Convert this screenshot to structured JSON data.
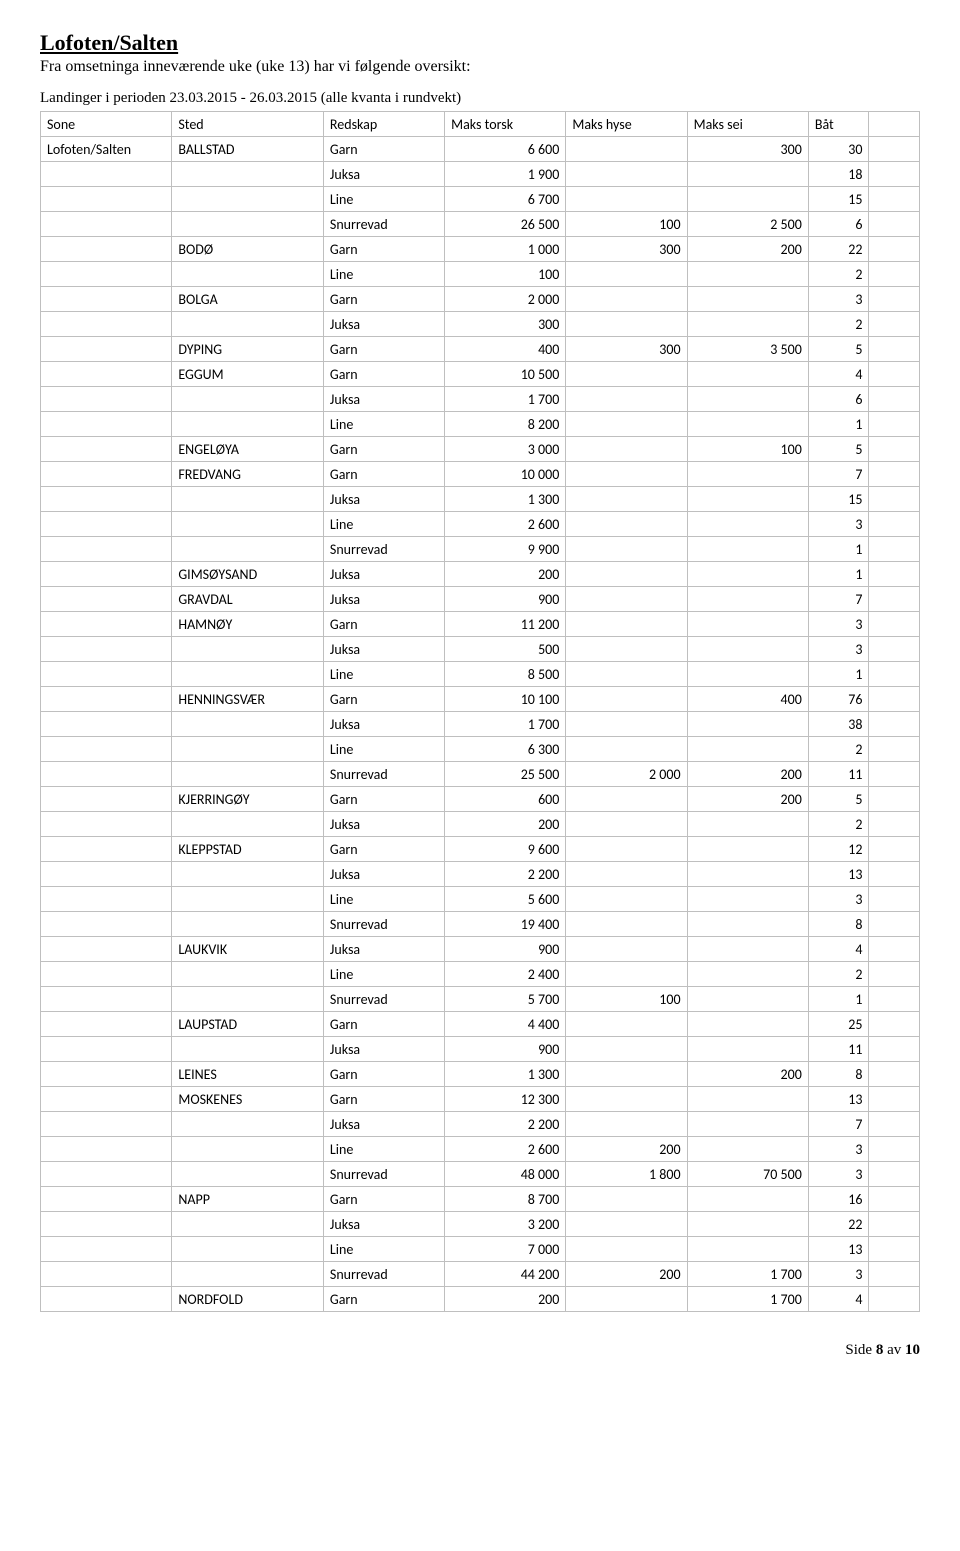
{
  "heading": "Lofoten/Salten",
  "subheading": "Fra omsetninga inneværende uke (uke 13) har vi følgende oversikt:",
  "period_line": "Landinger i perioden 23.03.2015 - 26.03.2015 (alle kvanta i rundvekt)",
  "columns": [
    "Sone",
    "Sted",
    "Redskap",
    "Maks torsk",
    "Maks hyse",
    "Maks sei",
    "Båt"
  ],
  "rows": [
    {
      "sone": "Lofoten/Salten",
      "sted": "BALLSTAD",
      "redskap": "Garn",
      "torsk": "6 600",
      "hyse": "",
      "sei": "300",
      "bat": "30"
    },
    {
      "sone": "",
      "sted": "",
      "redskap": "Juksa",
      "torsk": "1 900",
      "hyse": "",
      "sei": "",
      "bat": "18"
    },
    {
      "sone": "",
      "sted": "",
      "redskap": "Line",
      "torsk": "6 700",
      "hyse": "",
      "sei": "",
      "bat": "15"
    },
    {
      "sone": "",
      "sted": "",
      "redskap": "Snurrevad",
      "torsk": "26 500",
      "hyse": "100",
      "sei": "2 500",
      "bat": "6"
    },
    {
      "sone": "",
      "sted": "BODØ",
      "redskap": "Garn",
      "torsk": "1 000",
      "hyse": "300",
      "sei": "200",
      "bat": "22"
    },
    {
      "sone": "",
      "sted": "",
      "redskap": "Line",
      "torsk": "100",
      "hyse": "",
      "sei": "",
      "bat": "2"
    },
    {
      "sone": "",
      "sted": "BOLGA",
      "redskap": "Garn",
      "torsk": "2 000",
      "hyse": "",
      "sei": "",
      "bat": "3"
    },
    {
      "sone": "",
      "sted": "",
      "redskap": "Juksa",
      "torsk": "300",
      "hyse": "",
      "sei": "",
      "bat": "2"
    },
    {
      "sone": "",
      "sted": "DYPING",
      "redskap": "Garn",
      "torsk": "400",
      "hyse": "300",
      "sei": "3 500",
      "bat": "5"
    },
    {
      "sone": "",
      "sted": "EGGUM",
      "redskap": "Garn",
      "torsk": "10 500",
      "hyse": "",
      "sei": "",
      "bat": "4"
    },
    {
      "sone": "",
      "sted": "",
      "redskap": "Juksa",
      "torsk": "1 700",
      "hyse": "",
      "sei": "",
      "bat": "6"
    },
    {
      "sone": "",
      "sted": "",
      "redskap": "Line",
      "torsk": "8 200",
      "hyse": "",
      "sei": "",
      "bat": "1"
    },
    {
      "sone": "",
      "sted": "ENGELØYA",
      "redskap": "Garn",
      "torsk": "3 000",
      "hyse": "",
      "sei": "100",
      "bat": "5"
    },
    {
      "sone": "",
      "sted": "FREDVANG",
      "redskap": "Garn",
      "torsk": "10 000",
      "hyse": "",
      "sei": "",
      "bat": "7"
    },
    {
      "sone": "",
      "sted": "",
      "redskap": "Juksa",
      "torsk": "1 300",
      "hyse": "",
      "sei": "",
      "bat": "15"
    },
    {
      "sone": "",
      "sted": "",
      "redskap": "Line",
      "torsk": "2 600",
      "hyse": "",
      "sei": "",
      "bat": "3"
    },
    {
      "sone": "",
      "sted": "",
      "redskap": "Snurrevad",
      "torsk": "9 900",
      "hyse": "",
      "sei": "",
      "bat": "1"
    },
    {
      "sone": "",
      "sted": "GIMSØYSAND",
      "redskap": "Juksa",
      "torsk": "200",
      "hyse": "",
      "sei": "",
      "bat": "1"
    },
    {
      "sone": "",
      "sted": "GRAVDAL",
      "redskap": "Juksa",
      "torsk": "900",
      "hyse": "",
      "sei": "",
      "bat": "7"
    },
    {
      "sone": "",
      "sted": "HAMNØY",
      "redskap": "Garn",
      "torsk": "11 200",
      "hyse": "",
      "sei": "",
      "bat": "3"
    },
    {
      "sone": "",
      "sted": "",
      "redskap": "Juksa",
      "torsk": "500",
      "hyse": "",
      "sei": "",
      "bat": "3"
    },
    {
      "sone": "",
      "sted": "",
      "redskap": "Line",
      "torsk": "8 500",
      "hyse": "",
      "sei": "",
      "bat": "1"
    },
    {
      "sone": "",
      "sted": "HENNINGSVÆR",
      "redskap": "Garn",
      "torsk": "10 100",
      "hyse": "",
      "sei": "400",
      "bat": "76"
    },
    {
      "sone": "",
      "sted": "",
      "redskap": "Juksa",
      "torsk": "1 700",
      "hyse": "",
      "sei": "",
      "bat": "38"
    },
    {
      "sone": "",
      "sted": "",
      "redskap": "Line",
      "torsk": "6 300",
      "hyse": "",
      "sei": "",
      "bat": "2"
    },
    {
      "sone": "",
      "sted": "",
      "redskap": "Snurrevad",
      "torsk": "25 500",
      "hyse": "2 000",
      "sei": "200",
      "bat": "11"
    },
    {
      "sone": "",
      "sted": "KJERRINGØY",
      "redskap": "Garn",
      "torsk": "600",
      "hyse": "",
      "sei": "200",
      "bat": "5"
    },
    {
      "sone": "",
      "sted": "",
      "redskap": "Juksa",
      "torsk": "200",
      "hyse": "",
      "sei": "",
      "bat": "2"
    },
    {
      "sone": "",
      "sted": "KLEPPSTAD",
      "redskap": "Garn",
      "torsk": "9 600",
      "hyse": "",
      "sei": "",
      "bat": "12"
    },
    {
      "sone": "",
      "sted": "",
      "redskap": "Juksa",
      "torsk": "2 200",
      "hyse": "",
      "sei": "",
      "bat": "13"
    },
    {
      "sone": "",
      "sted": "",
      "redskap": "Line",
      "torsk": "5 600",
      "hyse": "",
      "sei": "",
      "bat": "3"
    },
    {
      "sone": "",
      "sted": "",
      "redskap": "Snurrevad",
      "torsk": "19 400",
      "hyse": "",
      "sei": "",
      "bat": "8"
    },
    {
      "sone": "",
      "sted": "LAUKVIK",
      "redskap": "Juksa",
      "torsk": "900",
      "hyse": "",
      "sei": "",
      "bat": "4"
    },
    {
      "sone": "",
      "sted": "",
      "redskap": "Line",
      "torsk": "2 400",
      "hyse": "",
      "sei": "",
      "bat": "2"
    },
    {
      "sone": "",
      "sted": "",
      "redskap": "Snurrevad",
      "torsk": "5 700",
      "hyse": "100",
      "sei": "",
      "bat": "1"
    },
    {
      "sone": "",
      "sted": "LAUPSTAD",
      "redskap": "Garn",
      "torsk": "4 400",
      "hyse": "",
      "sei": "",
      "bat": "25"
    },
    {
      "sone": "",
      "sted": "",
      "redskap": "Juksa",
      "torsk": "900",
      "hyse": "",
      "sei": "",
      "bat": "11"
    },
    {
      "sone": "",
      "sted": "LEINES",
      "redskap": "Garn",
      "torsk": "1 300",
      "hyse": "",
      "sei": "200",
      "bat": "8"
    },
    {
      "sone": "",
      "sted": "MOSKENES",
      "redskap": "Garn",
      "torsk": "12 300",
      "hyse": "",
      "sei": "",
      "bat": "13"
    },
    {
      "sone": "",
      "sted": "",
      "redskap": "Juksa",
      "torsk": "2 200",
      "hyse": "",
      "sei": "",
      "bat": "7"
    },
    {
      "sone": "",
      "sted": "",
      "redskap": "Line",
      "torsk": "2 600",
      "hyse": "200",
      "sei": "",
      "bat": "3"
    },
    {
      "sone": "",
      "sted": "",
      "redskap": "Snurrevad",
      "torsk": "48 000",
      "hyse": "1 800",
      "sei": "70 500",
      "bat": "3"
    },
    {
      "sone": "",
      "sted": "NAPP",
      "redskap": "Garn",
      "torsk": "8 700",
      "hyse": "",
      "sei": "",
      "bat": "16"
    },
    {
      "sone": "",
      "sted": "",
      "redskap": "Juksa",
      "torsk": "3 200",
      "hyse": "",
      "sei": "",
      "bat": "22"
    },
    {
      "sone": "",
      "sted": "",
      "redskap": "Line",
      "torsk": "7 000",
      "hyse": "",
      "sei": "",
      "bat": "13"
    },
    {
      "sone": "",
      "sted": "",
      "redskap": "Snurrevad",
      "torsk": "44 200",
      "hyse": "200",
      "sei": "1 700",
      "bat": "3"
    },
    {
      "sone": "",
      "sted": "NORDFOLD",
      "redskap": "Garn",
      "torsk": "200",
      "hyse": "",
      "sei": "1 700",
      "bat": "4"
    }
  ],
  "footer_prefix": "Side ",
  "footer_page": "8",
  "footer_mid": " av ",
  "footer_total": "10"
}
